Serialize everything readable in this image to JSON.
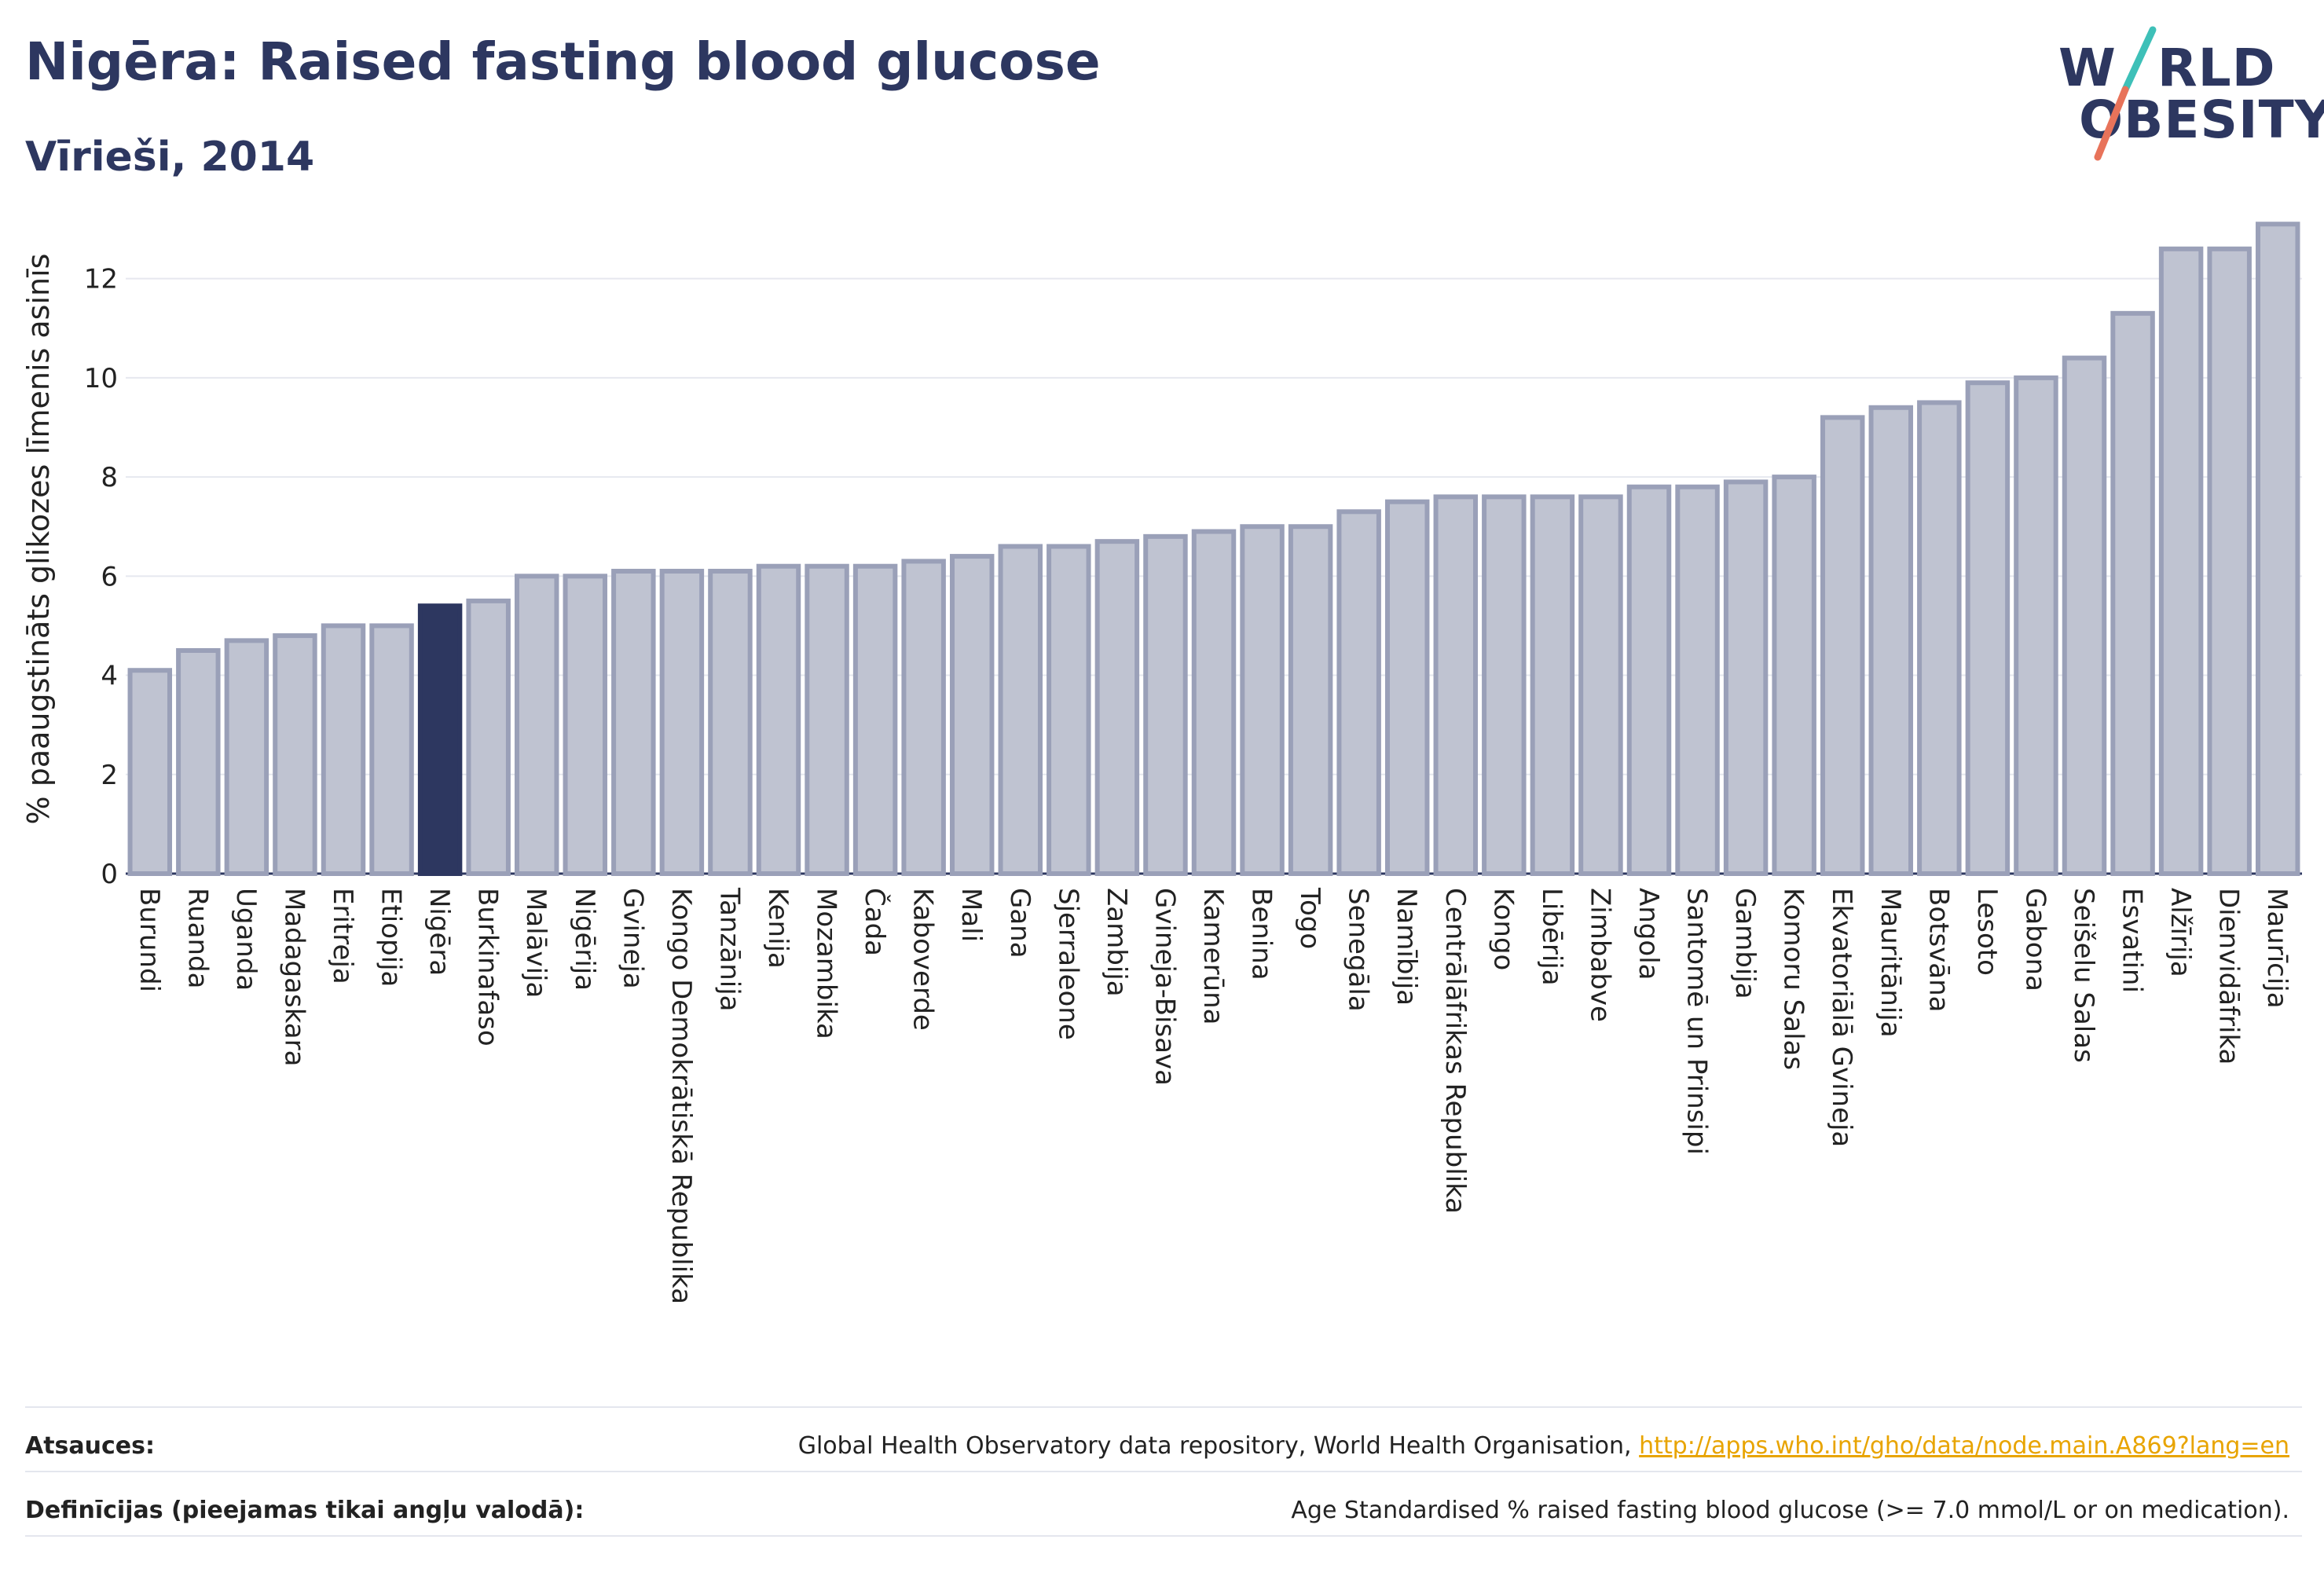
{
  "header": {
    "title": "Nigēra: Raised fasting blood glucose",
    "subtitle": "Vīrieši, 2014"
  },
  "logo": {
    "line1": "W RLD",
    "line2": "OBESITY",
    "name": "World Obesity",
    "colors": {
      "text": "#2d3760",
      "slash_top": "#3ec0b8",
      "slash_bottom": "#e8735a"
    }
  },
  "colors": {
    "bar": "#bfc3d1",
    "bar_border": "#9aa0b8",
    "highlight": "#2d3760",
    "grid": "#e6e8ef",
    "link": "#e8a400"
  },
  "chart_data": {
    "type": "bar",
    "title": "Nigēra: Raised fasting blood glucose",
    "subtitle": "Vīrieši, 2014",
    "xlabel": "",
    "ylabel": "% paaugstināts glikozes līmenis asinīs",
    "ylim": [
      0,
      13.5
    ],
    "yticks": [
      0,
      2,
      4,
      6,
      8,
      10,
      12
    ],
    "grid": true,
    "highlight": "Nigēra",
    "categories": [
      "Burundi",
      "Ruanda",
      "Uganda",
      "Madagaskara",
      "Eritreja",
      "Etiopija",
      "Nigēra",
      "Burkinafaso",
      "Malāvija",
      "Nigērija",
      "Gvineja",
      "Kongo Demokrātiskā Republika",
      "Tanzānija",
      "Kenija",
      "Mozambika",
      "Čada",
      "Kaboverde",
      "Mali",
      "Gana",
      "Sjerraleone",
      "Zambija",
      "Gvineja-Bisava",
      "Kamerūna",
      "Benina",
      "Togo",
      "Senegāla",
      "Namībija",
      "Centrālāfrikas Republika",
      "Kongo",
      "Libērija",
      "Zimbabve",
      "Angola",
      "Santomē un Prinsipi",
      "Gambija",
      "Komoru Salas",
      "Ekvatoriālā Gvineja",
      "Mauritānija",
      "Botsvāna",
      "Lesoto",
      "Gabona",
      "Seišelu Salas",
      "Esvatini",
      "Alžīrija",
      "Dienvidāfrika",
      "Maurīcija"
    ],
    "values": [
      4.1,
      4.5,
      4.7,
      4.8,
      5.0,
      5.0,
      5.4,
      5.5,
      6.0,
      6.0,
      6.1,
      6.1,
      6.1,
      6.2,
      6.2,
      6.2,
      6.3,
      6.4,
      6.6,
      6.6,
      6.7,
      6.8,
      6.9,
      7.0,
      7.0,
      7.3,
      7.5,
      7.6,
      7.6,
      7.6,
      7.6,
      7.8,
      7.8,
      7.9,
      8.0,
      9.2,
      9.4,
      9.5,
      9.9,
      10.0,
      10.4,
      11.3,
      12.6,
      12.6,
      13.1
    ]
  },
  "footer": {
    "sources_label": "Atsauces:",
    "sources_text": "Global Health Observatory data repository, World Health Organisation,",
    "sources_link": "http://apps.who.int/gho/data/node.main.A869?lang=en",
    "definitions_label": "Definīcijas (pieejamas tikai angļu valodā):",
    "definitions_text": "Age Standardised % raised fasting blood glucose (>= 7.0 mmol/L or on medication)."
  }
}
